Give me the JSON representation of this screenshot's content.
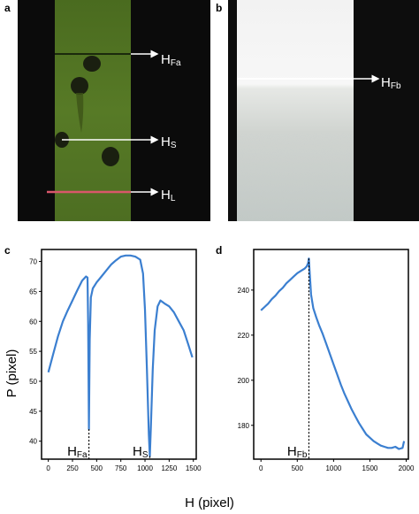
{
  "panels": {
    "a": {
      "letter": "a",
      "labels": {
        "hfa": {
          "main": "H",
          "sub": "Fa"
        },
        "hs": {
          "main": "H",
          "sub": "S"
        },
        "hl": {
          "main": "H",
          "sub": "L"
        }
      }
    },
    "b": {
      "letter": "b",
      "labels": {
        "hfb": {
          "main": "H",
          "sub": "Fb"
        }
      }
    },
    "c": {
      "letter": "c"
    },
    "d": {
      "letter": "d"
    }
  },
  "shared": {
    "ylabel": "P (pixel)",
    "xlabel": "H (pixel)"
  },
  "colors": {
    "line": "#3b7fd0",
    "marker_red": "#d9576a",
    "green_bg": "#4e6e22"
  },
  "chart_data": [
    {
      "id": "c",
      "type": "line",
      "xlim": [
        -70,
        1530
      ],
      "ylim": [
        37,
        72
      ],
      "xticks": [
        0,
        250,
        500,
        750,
        1000,
        1250,
        1500
      ],
      "yticks": [
        40,
        45,
        50,
        55,
        60,
        65,
        70
      ],
      "annotations": [
        {
          "main": "H",
          "sub": "Fa",
          "x": 420,
          "y_from": 42,
          "y_to": 37
        },
        {
          "main": "H",
          "sub": "S",
          "x": 1050,
          "y_from": 37.5,
          "y_to": 37
        }
      ],
      "series": [
        {
          "x": [
            0,
            50,
            100,
            150,
            200,
            250,
            300,
            350,
            390,
            405,
            412,
            420,
            428,
            440,
            460,
            500,
            550,
            600,
            650,
            700,
            750,
            800,
            850,
            900,
            950,
            980,
            1000,
            1020,
            1040,
            1050,
            1060,
            1080,
            1100,
            1130,
            1160,
            1200,
            1250,
            1300,
            1350,
            1400,
            1450,
            1490
          ],
          "y": [
            51.5,
            54.5,
            57.5,
            60,
            61.8,
            63.5,
            65.2,
            66.8,
            67.5,
            67.3,
            60,
            42,
            57,
            64,
            65.5,
            66.5,
            67.5,
            68.5,
            69.5,
            70.2,
            70.8,
            71,
            71,
            70.8,
            70.3,
            68,
            62,
            52,
            41,
            37.5,
            42,
            52,
            58.5,
            62.5,
            63.5,
            63,
            62.5,
            61.5,
            60,
            58.5,
            56,
            54
          ]
        }
      ]
    },
    {
      "id": "d",
      "type": "line",
      "xlim": [
        -100,
        2030
      ],
      "ylim": [
        165,
        258
      ],
      "xticks": [
        0,
        500,
        1000,
        1500,
        2000
      ],
      "yticks": [
        180,
        200,
        220,
        240
      ],
      "annotations": [
        {
          "main": "H",
          "sub": "Fb",
          "x": 660,
          "y_from": 254,
          "y_to": 165
        }
      ],
      "series": [
        {
          "x": [
            0,
            50,
            100,
            150,
            200,
            250,
            300,
            350,
            400,
            450,
            500,
            550,
            600,
            630,
            650,
            660,
            670,
            690,
            720,
            760,
            800,
            850,
            900,
            950,
            1000,
            1050,
            1100,
            1150,
            1200,
            1250,
            1300,
            1350,
            1400,
            1450,
            1500,
            1550,
            1600,
            1650,
            1700,
            1750,
            1800,
            1850,
            1900,
            1950,
            1970
          ],
          "y": [
            231,
            232.5,
            234,
            236,
            237.5,
            239.5,
            241,
            243,
            244.5,
            246,
            247.5,
            248.5,
            249.5,
            250.5,
            252,
            254,
            248,
            238,
            232,
            228,
            224.5,
            220.5,
            216,
            211.5,
            207,
            202.5,
            198,
            194,
            190.5,
            187,
            184,
            181,
            178.5,
            176,
            174.5,
            173,
            172,
            171,
            170.5,
            170,
            170,
            170.5,
            169.5,
            170,
            173
          ]
        }
      ]
    }
  ]
}
